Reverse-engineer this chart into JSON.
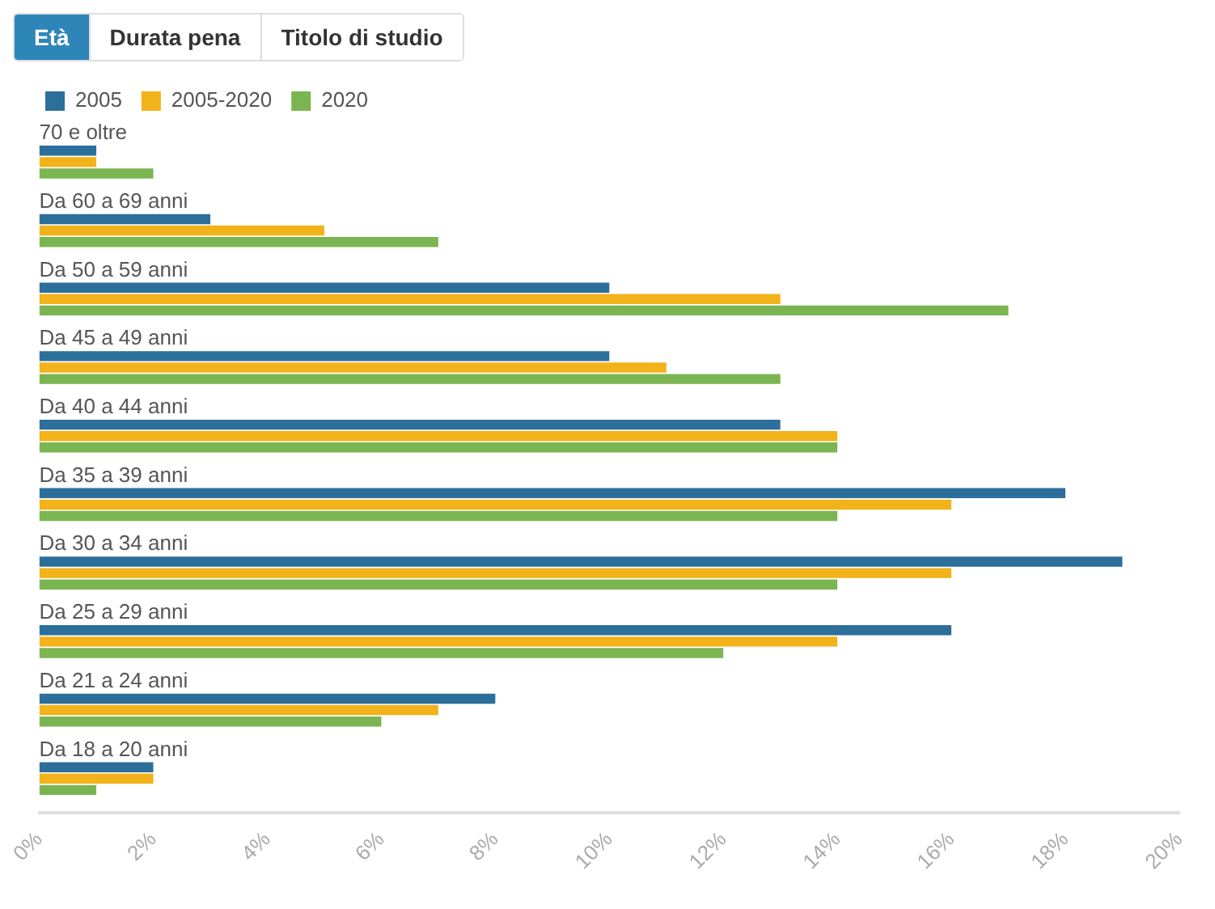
{
  "chart_data": {
    "type": "bar",
    "orientation": "horizontal",
    "categories": [
      "70 e oltre",
      "Da 60 a 69 anni",
      "Da 50 a 59 anni",
      "Da 45 a 49 anni",
      "Da 40 a 44 anni",
      "Da 35 a 39 anni",
      "Da 30 a 34 anni",
      "Da 25 a 29 anni",
      "Da 21 a 24 anni",
      "Da 18 a 20 anni"
    ],
    "series": [
      {
        "name": "2005",
        "color": "#2c6f9b",
        "values": [
          1,
          3,
          10,
          10,
          13,
          18,
          19,
          16,
          8,
          2
        ]
      },
      {
        "name": "2005-2020",
        "color": "#f2b219",
        "values": [
          1,
          5,
          13,
          11,
          14,
          16,
          16,
          14,
          7,
          2
        ]
      },
      {
        "name": "2020",
        "color": "#7bb551",
        "values": [
          2,
          7,
          17,
          13,
          14,
          14,
          14,
          12,
          6,
          1
        ]
      }
    ],
    "xlim": [
      0,
      20
    ],
    "xticks": [
      {
        "value": 0,
        "label": "0%"
      },
      {
        "value": 2,
        "label": "2%"
      },
      {
        "value": 4,
        "label": "4%"
      },
      {
        "value": 6,
        "label": "6%"
      },
      {
        "value": 8,
        "label": "8%"
      },
      {
        "value": 10,
        "label": "10%"
      },
      {
        "value": 12,
        "label": "12%"
      },
      {
        "value": 14,
        "label": "14%"
      },
      {
        "value": 16,
        "label": "16%"
      },
      {
        "value": 18,
        "label": "18%"
      },
      {
        "value": 20,
        "label": "20%"
      }
    ],
    "grid": false,
    "legend": "top left",
    "annotations": [
      "Età",
      "Durata pena",
      "Titolo di studio"
    ]
  }
}
